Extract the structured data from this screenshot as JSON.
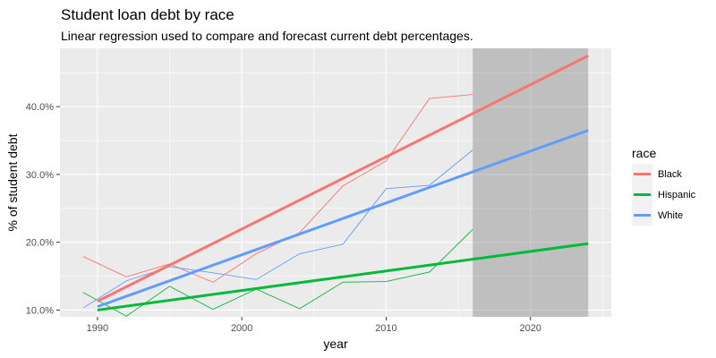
{
  "chart_data": {
    "type": "line",
    "title": "Student loan debt by race",
    "subtitle": "Linear regression used to compare and forecast current debt percentages.",
    "xlabel": "year",
    "ylabel": "% of student debt",
    "xlim": [
      1987.4,
      2025.6
    ],
    "ylim": [
      9.0,
      48.6
    ],
    "x_ticks": [
      1990,
      2000,
      2010,
      2020
    ],
    "x_tick_labels": [
      "1990",
      "2000",
      "2010",
      "2020"
    ],
    "x_minor": [
      1995,
      2005,
      2015,
      2025
    ],
    "y_ticks": [
      10,
      20,
      30,
      40
    ],
    "y_tick_labels": [
      "10.0%",
      "20.0%",
      "30.0%",
      "40.0%"
    ],
    "y_minor": [
      15,
      25,
      35,
      45
    ],
    "forecast_region": {
      "x_start": 2016,
      "x_end": 2024
    },
    "legend": {
      "title": "race",
      "position": "right",
      "entries": [
        "Black",
        "Hispanic",
        "White"
      ]
    },
    "series": [
      {
        "name": "Black",
        "color": "#F8766D",
        "x": [
          1989,
          1992,
          1995,
          1998,
          2001,
          2004,
          2007,
          2010,
          2013,
          2016
        ],
        "y": [
          17.9,
          14.9,
          16.8,
          14.1,
          18.3,
          21.4,
          28.3,
          32.0,
          41.2,
          41.8
        ],
        "trend": {
          "x": [
            1990,
            2024
          ],
          "y": [
            11.3,
            47.5
          ]
        }
      },
      {
        "name": "Hispanic",
        "color": "#00BA38",
        "x": [
          1989,
          1992,
          1995,
          1998,
          2001,
          2004,
          2007,
          2010,
          2013,
          2016
        ],
        "y": [
          12.6,
          9.1,
          13.5,
          10.1,
          13.1,
          10.2,
          14.1,
          14.2,
          15.6,
          21.9
        ],
        "trend": {
          "x": [
            1990,
            2024
          ],
          "y": [
            10.0,
            19.8
          ]
        }
      },
      {
        "name": "White",
        "color": "#619CFF",
        "x": [
          1989,
          1992,
          1995,
          1998,
          2001,
          2004,
          2007,
          2010,
          2013,
          2016
        ],
        "y": [
          10.3,
          14.3,
          16.4,
          15.5,
          14.5,
          18.3,
          19.7,
          27.9,
          28.4,
          33.6
        ],
        "trend": {
          "x": [
            1990,
            2024
          ],
          "y": [
            10.5,
            36.5
          ]
        }
      }
    ]
  }
}
